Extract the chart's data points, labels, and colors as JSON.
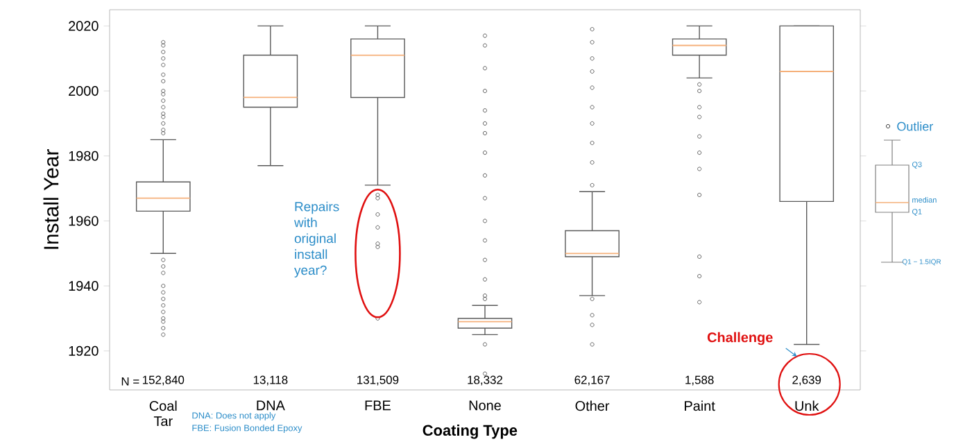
{
  "chart_data": {
    "type": "box",
    "xlabel": "Coating Type",
    "ylabel": "Install Year",
    "categories": [
      "Coal Tar",
      "DNA",
      "FBE",
      "None",
      "Other",
      "Paint",
      "Unk"
    ],
    "ylim": [
      1908,
      2025
    ],
    "yticks": [
      1920,
      1940,
      1960,
      1980,
      2000,
      2020
    ],
    "marker": "circle",
    "series": [
      {
        "color": "#595959",
        "boxes": [
          {
            "low": 1950,
            "q1": 1963,
            "median": 1967,
            "q3": 1972,
            "high": 1985,
            "outliers": [
              1987,
              1988,
              1990,
              1992,
              1993,
              1995,
              1997,
              1999,
              2000,
              2003,
              2005,
              2008,
              2010,
              2012,
              2014,
              2015,
              1925,
              1927,
              1929,
              1930,
              1932,
              1934,
              1936,
              1938,
              1940,
              1944,
              1946,
              1948
            ]
          },
          {
            "low": 1977,
            "q1": 1995,
            "median": 1998,
            "q3": 2011,
            "high": 2020
          },
          {
            "low": 1971,
            "q1": 1998,
            "median": 2011,
            "q3": 2016,
            "high": 2020,
            "outliers": [
              1968,
              1967,
              1962,
              1958,
              1953,
              1952,
              1930
            ]
          },
          {
            "low": 1925,
            "q1": 1927,
            "median": 1929,
            "q3": 1930,
            "high": 1934,
            "outliers": [
              1936,
              1937,
              1942,
              1948,
              1954,
              1960,
              1967,
              1974,
              1981,
              1987,
              1990,
              1994,
              2000,
              2007,
              2014,
              2017,
              1922,
              1913
            ]
          },
          {
            "low": 1937,
            "q1": 1949,
            "median": 1950,
            "q3": 1957,
            "high": 1969,
            "outliers": [
              1971,
              1978,
              1984,
              1990,
              1995,
              2001,
              2006,
              2010,
              2015,
              2019,
              1936,
              1931,
              1928,
              1922
            ]
          },
          {
            "low": 2004,
            "q1": 2011,
            "median": 2014,
            "q3": 2016,
            "high": 2020,
            "outliers": [
              2002,
              2000,
              1995,
              1992,
              1986,
              1981,
              1976,
              1968,
              1949,
              1943,
              1935
            ]
          },
          {
            "low": 1922,
            "q1": 1966,
            "median": 2006,
            "q3": 2020,
            "high": 2020
          }
        ]
      }
    ],
    "annotations": [
      "N =",
      "152,840",
      "13,118",
      "131,509",
      "18,332",
      "62,167",
      "1,588",
      "2,639",
      "Repairs with original install year?",
      "Challenge",
      "DNA: Does not apply",
      "FBE: Fusion Bonded Epoxy",
      "Outlier",
      "Q3",
      "median",
      "Q1",
      "Q1 − 1.5IQR"
    ]
  }
}
